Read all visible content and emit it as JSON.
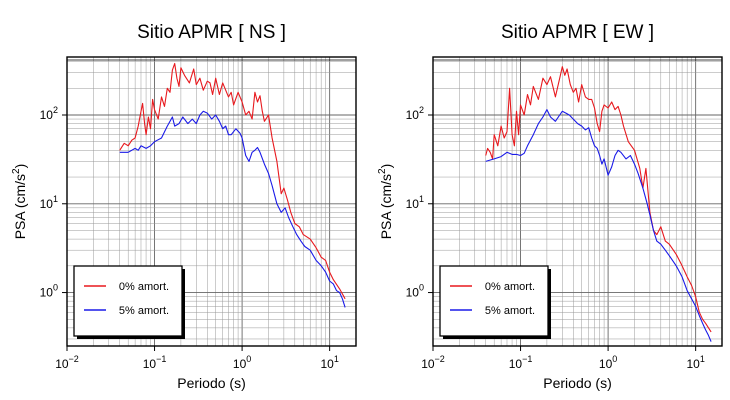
{
  "chart_data": [
    {
      "type": "line",
      "title": "Sitio APMR [ NS ]",
      "xlabel": "Periodo (s)",
      "ylabel": "PSA (cm/s",
      "ylabel_sup": "2",
      "ylabel_close": ")",
      "xscale": "log",
      "yscale": "log",
      "xlim": [
        0.01,
        20
      ],
      "ylim": [
        0.25,
        450
      ],
      "grid": true,
      "legend_position": "bottom-left",
      "x_ticks": [
        {
          "value": 0.01,
          "base": "10",
          "exp": "−2"
        },
        {
          "value": 0.1,
          "base": "10",
          "exp": "−1"
        },
        {
          "value": 1,
          "base": "10",
          "exp": "0"
        },
        {
          "value": 10,
          "base": "10",
          "exp": "1"
        }
      ],
      "y_ticks": [
        {
          "value": 1,
          "base": "10",
          "exp": "0"
        },
        {
          "value": 10,
          "base": "10",
          "exp": "1"
        },
        {
          "value": 100,
          "base": "10",
          "exp": "2"
        }
      ],
      "series": [
        {
          "name": "0% amort.",
          "color": "#e8191e",
          "points": [
            [
              0.04,
              40
            ],
            [
              0.045,
              48
            ],
            [
              0.05,
              45
            ],
            [
              0.055,
              52
            ],
            [
              0.06,
              55
            ],
            [
              0.065,
              75
            ],
            [
              0.07,
              110
            ],
            [
              0.073,
              135
            ],
            [
              0.077,
              80
            ],
            [
              0.08,
              60
            ],
            [
              0.085,
              95
            ],
            [
              0.09,
              70
            ],
            [
              0.095,
              150
            ],
            [
              0.1,
              115
            ],
            [
              0.11,
              90
            ],
            [
              0.12,
              160
            ],
            [
              0.13,
              125
            ],
            [
              0.14,
              200
            ],
            [
              0.15,
              180
            ],
            [
              0.16,
              320
            ],
            [
              0.17,
              380
            ],
            [
              0.18,
              260
            ],
            [
              0.19,
              210
            ],
            [
              0.2,
              340
            ],
            [
              0.22,
              280
            ],
            [
              0.25,
              230
            ],
            [
              0.28,
              330
            ],
            [
              0.3,
              220
            ],
            [
              0.33,
              260
            ],
            [
              0.36,
              190
            ],
            [
              0.4,
              240
            ],
            [
              0.43,
              230
            ],
            [
              0.46,
              170
            ],
            [
              0.5,
              260
            ],
            [
              0.55,
              170
            ],
            [
              0.6,
              230
            ],
            [
              0.65,
              190
            ],
            [
              0.7,
              160
            ],
            [
              0.75,
              180
            ],
            [
              0.8,
              130
            ],
            [
              0.9,
              180
            ],
            [
              1.0,
              140
            ],
            [
              1.1,
              100
            ],
            [
              1.2,
              110
            ],
            [
              1.3,
              90
            ],
            [
              1.4,
              180
            ],
            [
              1.5,
              140
            ],
            [
              1.6,
              165
            ],
            [
              1.7,
              110
            ],
            [
              1.8,
              85
            ],
            [
              2.0,
              100
            ],
            [
              2.2,
              55
            ],
            [
              2.5,
              30
            ],
            [
              2.8,
              13
            ],
            [
              3.0,
              15
            ],
            [
              3.3,
              11
            ],
            [
              3.6,
              8
            ],
            [
              4.0,
              6
            ],
            [
              4.5,
              5.5
            ],
            [
              5.0,
              4.5
            ],
            [
              6.0,
              4
            ],
            [
              7.0,
              3.2
            ],
            [
              8.0,
              2.5
            ],
            [
              9.0,
              2.3
            ],
            [
              10,
              1.7
            ],
            [
              11,
              1.4
            ],
            [
              13,
              1.1
            ],
            [
              15,
              0.85
            ]
          ]
        },
        {
          "name": "5% amort.",
          "color": "#1a1ae8",
          "points": [
            [
              0.04,
              38
            ],
            [
              0.05,
              38
            ],
            [
              0.06,
              42
            ],
            [
              0.065,
              40
            ],
            [
              0.07,
              45
            ],
            [
              0.08,
              42
            ],
            [
              0.09,
              45
            ],
            [
              0.1,
              50
            ],
            [
              0.12,
              55
            ],
            [
              0.14,
              75
            ],
            [
              0.16,
              95
            ],
            [
              0.17,
              75
            ],
            [
              0.19,
              80
            ],
            [
              0.21,
              95
            ],
            [
              0.24,
              80
            ],
            [
              0.27,
              90
            ],
            [
              0.3,
              80
            ],
            [
              0.33,
              100
            ],
            [
              0.36,
              110
            ],
            [
              0.4,
              105
            ],
            [
              0.45,
              90
            ],
            [
              0.5,
              100
            ],
            [
              0.55,
              85
            ],
            [
              0.6,
              70
            ],
            [
              0.65,
              75
            ],
            [
              0.7,
              60
            ],
            [
              0.75,
              60
            ],
            [
              0.85,
              70
            ],
            [
              0.95,
              62
            ],
            [
              1.0,
              55
            ],
            [
              1.1,
              35
            ],
            [
              1.2,
              30
            ],
            [
              1.3,
              38
            ],
            [
              1.4,
              40
            ],
            [
              1.5,
              43
            ],
            [
              1.6,
              38
            ],
            [
              1.8,
              28
            ],
            [
              2.0,
              22
            ],
            [
              2.2,
              16
            ],
            [
              2.5,
              10
            ],
            [
              2.8,
              8
            ],
            [
              3.1,
              9
            ],
            [
              3.4,
              7
            ],
            [
              3.8,
              5.5
            ],
            [
              4.2,
              4.5
            ],
            [
              4.7,
              3.8
            ],
            [
              5.2,
              3.3
            ],
            [
              6.0,
              3
            ],
            [
              7.0,
              2.3
            ],
            [
              8.0,
              2
            ],
            [
              9.0,
              1.7
            ],
            [
              10,
              1.35
            ],
            [
              11,
              1.25
            ],
            [
              12,
              1.05
            ],
            [
              13,
              1.0
            ],
            [
              14,
              0.85
            ],
            [
              15,
              0.68
            ]
          ]
        }
      ]
    },
    {
      "type": "line",
      "title": "Sitio APMR [ EW ]",
      "xlabel": "Periodo (s)",
      "ylabel": "PSA (cm/s",
      "ylabel_sup": "2",
      "ylabel_close": ")",
      "xscale": "log",
      "yscale": "log",
      "xlim": [
        0.01,
        20
      ],
      "ylim": [
        0.25,
        450
      ],
      "grid": true,
      "legend_position": "bottom-left",
      "x_ticks": [
        {
          "value": 0.01,
          "base": "10",
          "exp": "−2"
        },
        {
          "value": 0.1,
          "base": "10",
          "exp": "−1"
        },
        {
          "value": 1,
          "base": "10",
          "exp": "0"
        },
        {
          "value": 10,
          "base": "10",
          "exp": "1"
        }
      ],
      "y_ticks": [
        {
          "value": 1,
          "base": "10",
          "exp": "0"
        },
        {
          "value": 10,
          "base": "10",
          "exp": "1"
        },
        {
          "value": 100,
          "base": "10",
          "exp": "2"
        }
      ],
      "series": [
        {
          "name": "0% amort.",
          "color": "#e8191e",
          "points": [
            [
              0.04,
              35
            ],
            [
              0.042,
              42
            ],
            [
              0.045,
              38
            ],
            [
              0.048,
              32
            ],
            [
              0.05,
              60
            ],
            [
              0.055,
              45
            ],
            [
              0.06,
              75
            ],
            [
              0.065,
              55
            ],
            [
              0.07,
              65
            ],
            [
              0.075,
              200
            ],
            [
              0.08,
              60
            ],
            [
              0.085,
              45
            ],
            [
              0.09,
              110
            ],
            [
              0.095,
              60
            ],
            [
              0.1,
              130
            ],
            [
              0.11,
              100
            ],
            [
              0.12,
              170
            ],
            [
              0.13,
              130
            ],
            [
              0.14,
              210
            ],
            [
              0.16,
              150
            ],
            [
              0.18,
              260
            ],
            [
              0.2,
              220
            ],
            [
              0.22,
              270
            ],
            [
              0.25,
              160
            ],
            [
              0.28,
              260
            ],
            [
              0.3,
              350
            ],
            [
              0.32,
              280
            ],
            [
              0.34,
              330
            ],
            [
              0.37,
              220
            ],
            [
              0.4,
              180
            ],
            [
              0.43,
              200
            ],
            [
              0.46,
              140
            ],
            [
              0.5,
              220
            ],
            [
              0.55,
              160
            ],
            [
              0.6,
              150
            ],
            [
              0.65,
              150
            ],
            [
              0.7,
              120
            ],
            [
              0.75,
              80
            ],
            [
              0.8,
              65
            ],
            [
              0.85,
              110
            ],
            [
              0.9,
              130
            ],
            [
              1.0,
              120
            ],
            [
              1.1,
              140
            ],
            [
              1.2,
              115
            ],
            [
              1.3,
              125
            ],
            [
              1.4,
              100
            ],
            [
              1.5,
              75
            ],
            [
              1.7,
              50
            ],
            [
              2.0,
              40
            ],
            [
              2.3,
              25
            ],
            [
              2.5,
              15
            ],
            [
              2.7,
              25
            ],
            [
              3.0,
              8
            ],
            [
              3.3,
              5
            ],
            [
              3.6,
              4.5
            ],
            [
              4.0,
              5.5
            ],
            [
              4.5,
              3.8
            ],
            [
              5.0,
              3.5
            ],
            [
              6.0,
              2.7
            ],
            [
              7.0,
              2.0
            ],
            [
              8.0,
              1.5
            ],
            [
              9.0,
              1.2
            ],
            [
              10,
              0.9
            ],
            [
              11,
              0.6
            ],
            [
              12,
              0.5
            ],
            [
              13,
              0.45
            ],
            [
              15,
              0.36
            ]
          ]
        },
        {
          "name": "5% amort.",
          "color": "#1a1ae8",
          "points": [
            [
              0.04,
              30
            ],
            [
              0.05,
              32
            ],
            [
              0.06,
              34
            ],
            [
              0.07,
              38
            ],
            [
              0.08,
              36
            ],
            [
              0.09,
              36
            ],
            [
              0.1,
              35
            ],
            [
              0.11,
              37
            ],
            [
              0.12,
              45
            ],
            [
              0.14,
              60
            ],
            [
              0.16,
              80
            ],
            [
              0.18,
              95
            ],
            [
              0.2,
              115
            ],
            [
              0.22,
              95
            ],
            [
              0.25,
              85
            ],
            [
              0.28,
              100
            ],
            [
              0.3,
              110
            ],
            [
              0.33,
              105
            ],
            [
              0.36,
              100
            ],
            [
              0.4,
              90
            ],
            [
              0.45,
              80
            ],
            [
              0.5,
              75
            ],
            [
              0.55,
              68
            ],
            [
              0.6,
              72
            ],
            [
              0.65,
              55
            ],
            [
              0.7,
              45
            ],
            [
              0.75,
              42
            ],
            [
              0.8,
              35
            ],
            [
              0.85,
              28
            ],
            [
              0.9,
              32
            ],
            [
              1.0,
              21
            ],
            [
              1.1,
              26
            ],
            [
              1.2,
              35
            ],
            [
              1.3,
              40
            ],
            [
              1.4,
              38
            ],
            [
              1.6,
              32
            ],
            [
              1.8,
              35
            ],
            [
              2.0,
              28
            ],
            [
              2.2,
              22
            ],
            [
              2.5,
              15
            ],
            [
              2.8,
              10
            ],
            [
              3.0,
              7.5
            ],
            [
              3.3,
              5
            ],
            [
              3.6,
              3.8
            ],
            [
              4.0,
              3.5
            ],
            [
              4.5,
              3
            ],
            [
              5.0,
              2.6
            ],
            [
              6.0,
              2
            ],
            [
              7.0,
              1.5
            ],
            [
              8.0,
              1.05
            ],
            [
              9.0,
              0.85
            ],
            [
              10,
              0.7
            ],
            [
              11,
              0.55
            ],
            [
              12,
              0.45
            ],
            [
              13,
              0.38
            ],
            [
              14,
              0.33
            ],
            [
              15,
              0.28
            ]
          ]
        }
      ]
    }
  ]
}
